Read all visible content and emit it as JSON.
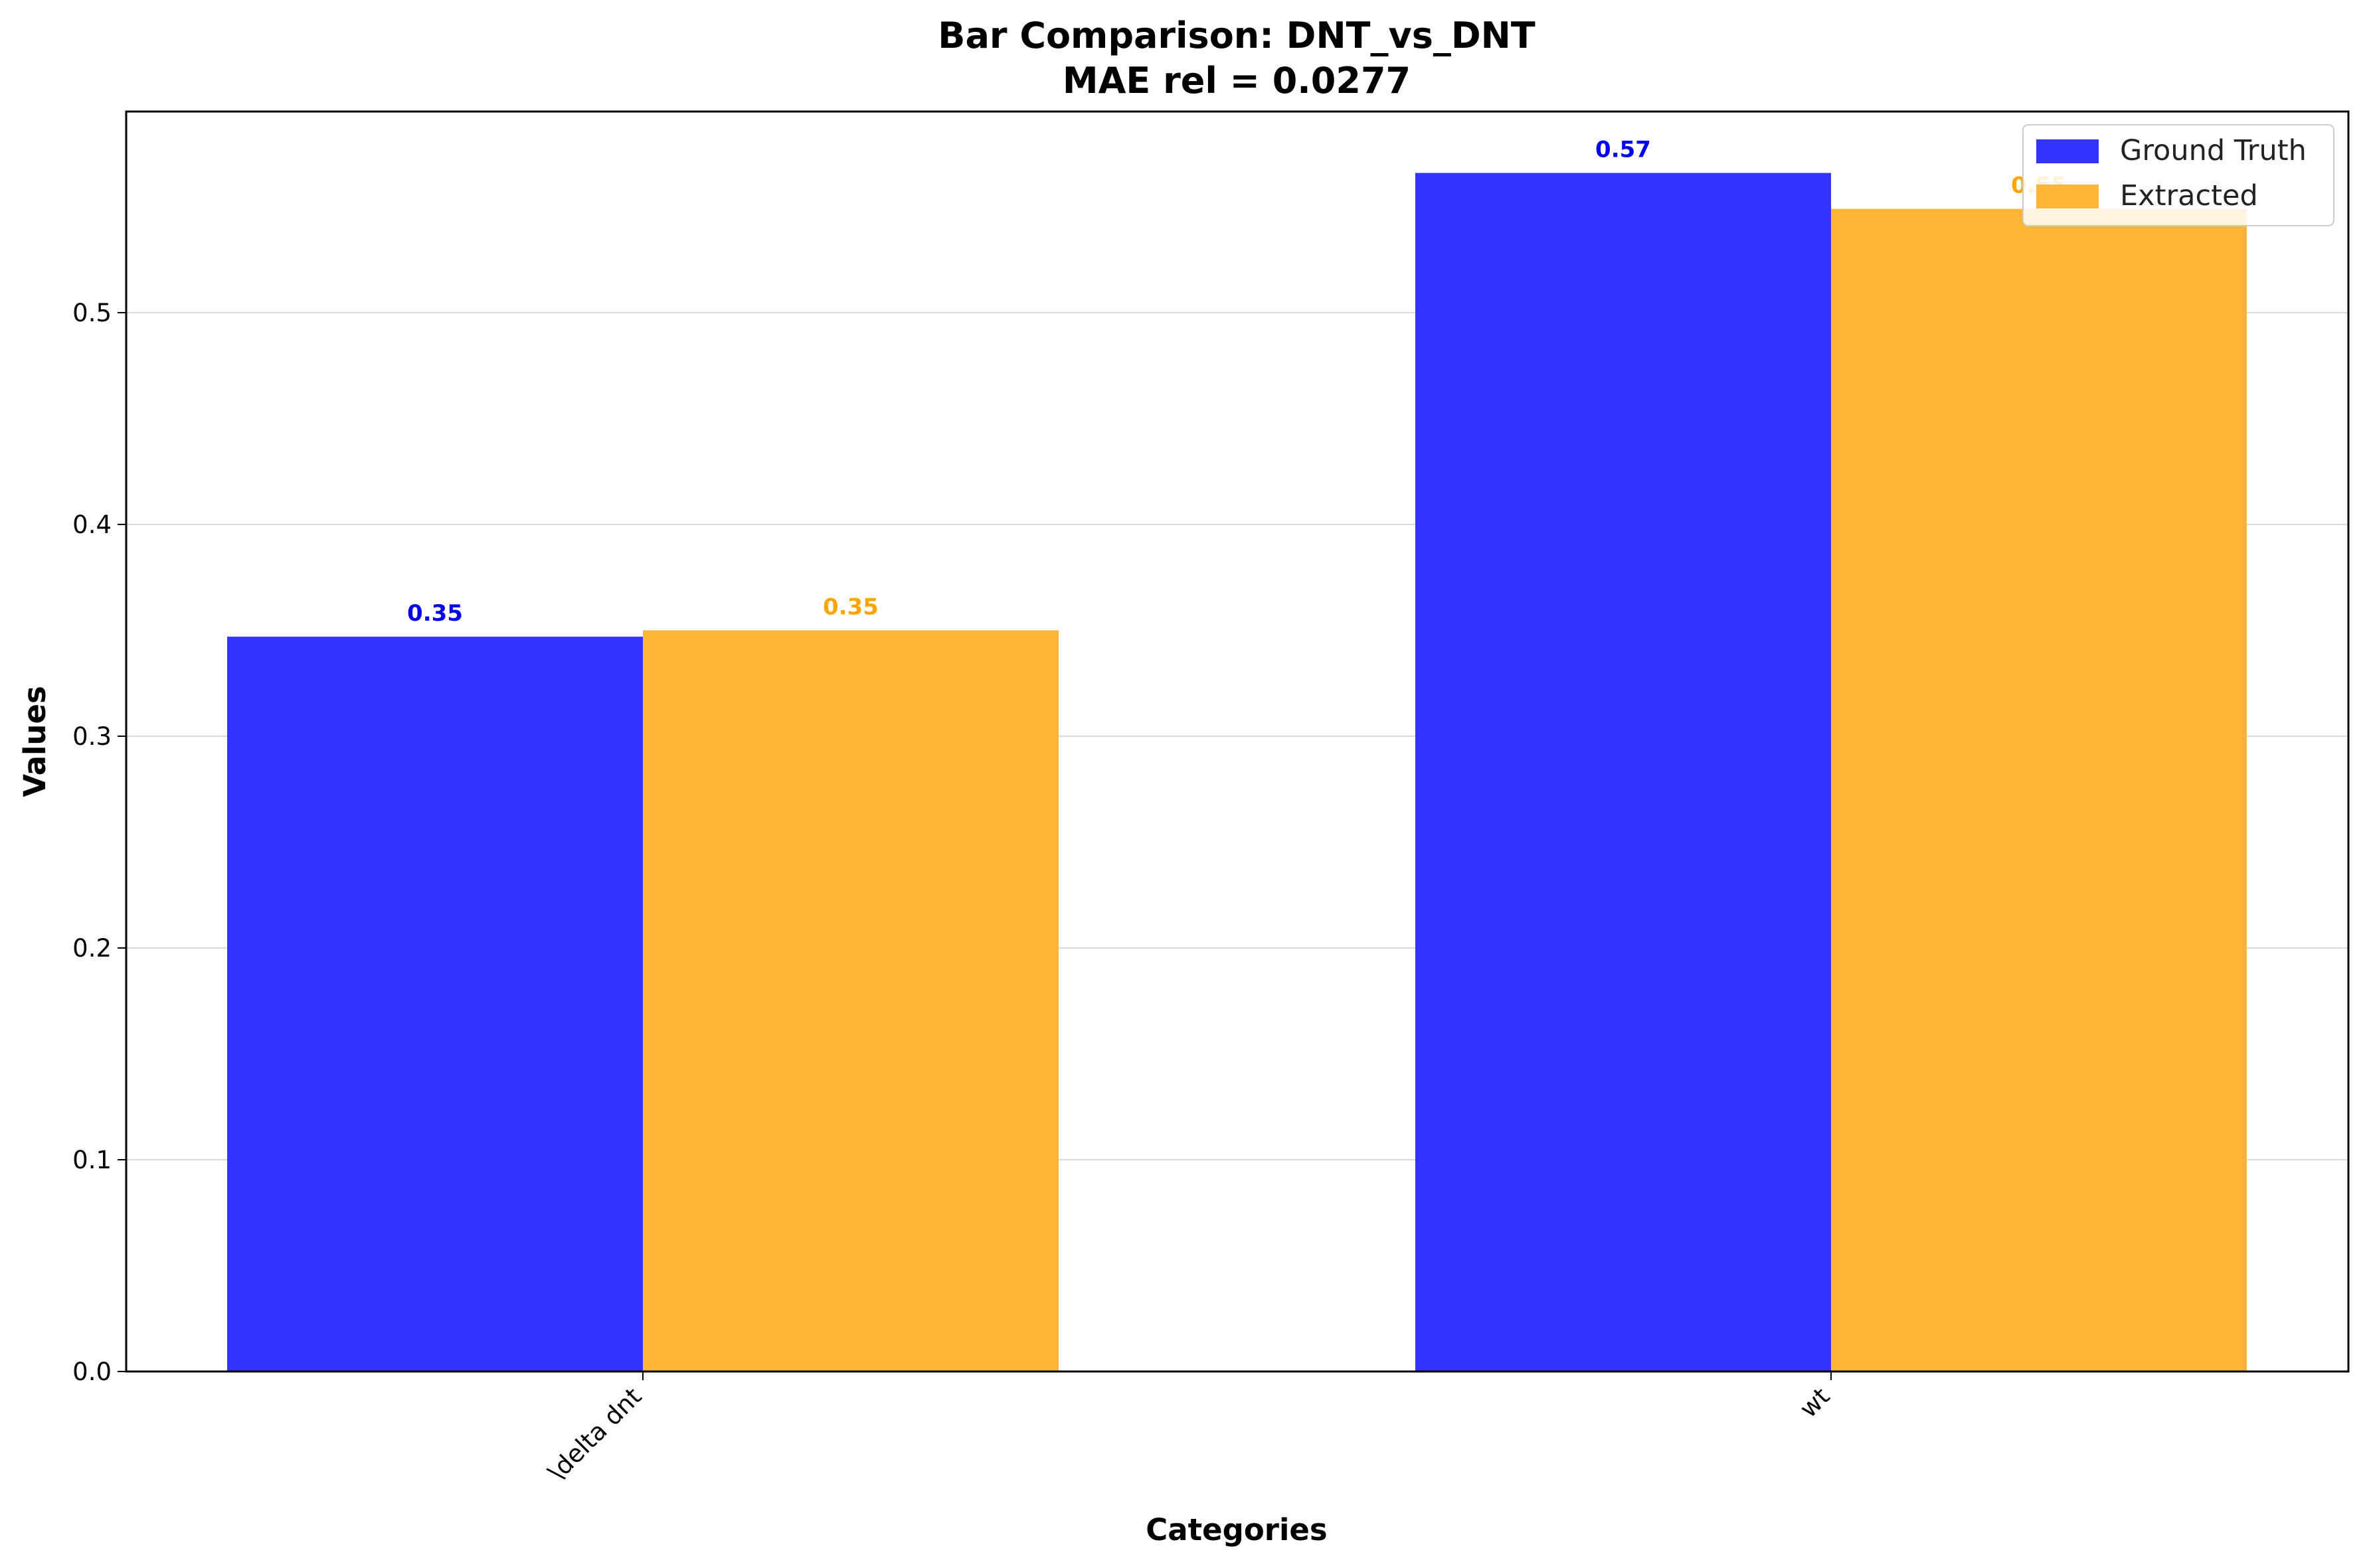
{
  "chart_data": {
    "type": "bar",
    "title": "Bar Comparison: DNT_vs_DNT",
    "subtitle": "MAE rel = 0.0277",
    "xlabel": "Categories",
    "ylabel": "Values",
    "categories": [
      "\\delta dnt",
      "wt"
    ],
    "series": [
      {
        "name": "Ground Truth",
        "color": "#3333ff",
        "label_color": "#0000ee",
        "values": [
          0.347,
          0.566
        ],
        "labels": [
          "0.35",
          "0.57"
        ]
      },
      {
        "name": "Extracted",
        "color": "#ffb433",
        "label_color": "#ffa500",
        "values": [
          0.35,
          0.549
        ],
        "labels": [
          "0.35",
          "0.55"
        ]
      }
    ],
    "ylim": [
      0,
      0.595
    ],
    "yticks": [
      0.0,
      0.1,
      0.2,
      0.3,
      0.4,
      0.5
    ],
    "ytick_labels": [
      "0.0",
      "0.1",
      "0.2",
      "0.3",
      "0.4",
      "0.5"
    ],
    "grid": "horizontal",
    "legend_position": "top-right"
  }
}
